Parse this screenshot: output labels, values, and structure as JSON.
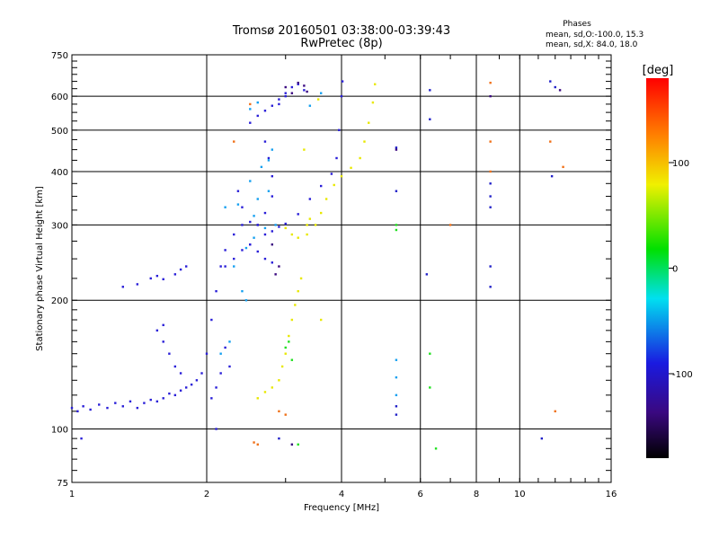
{
  "chart_data": {
    "type": "scatter",
    "title": "Tromsø 20160501 03:38:00-03:39:43",
    "subtitle": "RwPretec (8p)",
    "phases": {
      "heading": "Phases",
      "line1": "mean, sd,O:-100.0, 15.3",
      "line2": "mean, sd,X:  84.0, 18.0"
    },
    "xlabel": "Frequency [MHz]",
    "ylabel": "Stationary phase Virtual Height [km]",
    "x_scale": "log",
    "y_scale": "log",
    "xlim": [
      1,
      16
    ],
    "ylim": [
      75,
      750
    ],
    "x_ticks": [
      {
        "v": 1,
        "label": "1"
      },
      {
        "v": 2,
        "label": "2"
      },
      {
        "v": 4,
        "label": "4"
      },
      {
        "v": 6,
        "label": "6"
      },
      {
        "v": 8,
        "label": "8"
      },
      {
        "v": 10,
        "label": "10"
      },
      {
        "v": 16,
        "label": "16"
      }
    ],
    "y_ticks": [
      {
        "v": 75,
        "label": "75"
      },
      {
        "v": 100,
        "label": "100"
      },
      {
        "v": 200,
        "label": "200"
      },
      {
        "v": 300,
        "label": "300"
      },
      {
        "v": 400,
        "label": "400"
      },
      {
        "v": 500,
        "label": "500"
      },
      {
        "v": 600,
        "label": "600"
      },
      {
        "v": 750,
        "label": "750"
      }
    ],
    "grid": true,
    "colorbar": {
      "label": "[deg]",
      "range": [
        -180,
        180
      ],
      "ticks": [
        {
          "v": 100,
          "label": "100"
        },
        {
          "v": 0,
          "label": "0"
        },
        {
          "v": -100,
          "label": "-100"
        }
      ]
    },
    "series": [
      {
        "role": "o-mode",
        "phase": -100,
        "color": "#2a1fd8",
        "points": [
          [
            1.0,
            112
          ],
          [
            1.03,
            110
          ],
          [
            1.06,
            113
          ],
          [
            1.1,
            111
          ],
          [
            1.15,
            114
          ],
          [
            1.2,
            112
          ],
          [
            1.25,
            115
          ],
          [
            1.3,
            113
          ],
          [
            1.35,
            116
          ],
          [
            1.4,
            112
          ],
          [
            1.45,
            115
          ],
          [
            1.5,
            117
          ],
          [
            1.55,
            116
          ],
          [
            1.6,
            118
          ],
          [
            1.65,
            121
          ],
          [
            1.7,
            120
          ],
          [
            1.75,
            123
          ],
          [
            1.8,
            125
          ],
          [
            1.85,
            127
          ],
          [
            1.9,
            130
          ],
          [
            1.95,
            135
          ],
          [
            2.0,
            150
          ],
          [
            2.05,
            180
          ],
          [
            2.1,
            210
          ],
          [
            2.15,
            240
          ],
          [
            2.2,
            262
          ],
          [
            2.3,
            285
          ],
          [
            2.4,
            300
          ],
          [
            2.5,
            305
          ],
          [
            2.6,
            300
          ],
          [
            2.7,
            285
          ],
          [
            2.8,
            290
          ],
          [
            2.9,
            297
          ],
          [
            3.0,
            302
          ],
          [
            3.2,
            318
          ],
          [
            3.4,
            345
          ],
          [
            3.6,
            370
          ],
          [
            3.8,
            395
          ],
          [
            3.9,
            430
          ],
          [
            3.95,
            500
          ],
          [
            4.0,
            600
          ],
          [
            4.02,
            650
          ],
          [
            1.3,
            215
          ],
          [
            1.4,
            218
          ],
          [
            1.5,
            225
          ],
          [
            1.55,
            228
          ],
          [
            1.6,
            224
          ],
          [
            1.7,
            230
          ],
          [
            1.75,
            236
          ],
          [
            1.8,
            240
          ],
          [
            1.55,
            170
          ],
          [
            1.6,
            160
          ],
          [
            1.65,
            150
          ],
          [
            1.7,
            140
          ],
          [
            1.75,
            135
          ],
          [
            1.6,
            175
          ],
          [
            2.2,
            240
          ],
          [
            2.3,
            250
          ],
          [
            2.4,
            262
          ],
          [
            2.5,
            270
          ],
          [
            2.6,
            260
          ],
          [
            2.7,
            250
          ],
          [
            2.8,
            245
          ],
          [
            2.5,
            520
          ],
          [
            2.6,
            540
          ],
          [
            2.7,
            555
          ],
          [
            2.8,
            570
          ],
          [
            2.9,
            590
          ],
          [
            3.0,
            610
          ],
          [
            3.1,
            630
          ],
          [
            3.2,
            640
          ],
          [
            3.3,
            620
          ],
          [
            3.0,
            600
          ],
          [
            2.9,
            575
          ],
          [
            2.7,
            470
          ],
          [
            2.75,
            430
          ],
          [
            2.8,
            390
          ],
          [
            2.8,
            350
          ],
          [
            2.7,
            320
          ],
          [
            2.6,
            300
          ],
          [
            2.5,
            270
          ],
          [
            2.4,
            330
          ],
          [
            2.35,
            360
          ],
          [
            2.2,
            155
          ],
          [
            2.25,
            140
          ],
          [
            2.1,
            125
          ],
          [
            2.05,
            118
          ],
          [
            2.15,
            135
          ],
          [
            2.1,
            100
          ],
          [
            1.05,
            95
          ]
        ]
      },
      {
        "role": "o-mode-cyan",
        "phase": -60,
        "color": "#15a0f0",
        "points": [
          [
            2.45,
            265
          ],
          [
            2.55,
            280
          ],
          [
            2.7,
            295
          ],
          [
            2.85,
            300
          ],
          [
            2.35,
            335
          ],
          [
            2.55,
            315
          ],
          [
            2.6,
            345
          ],
          [
            2.2,
            330
          ],
          [
            2.75,
            360
          ],
          [
            2.5,
            380
          ],
          [
            2.65,
            410
          ],
          [
            2.75,
            425
          ],
          [
            2.8,
            450
          ],
          [
            2.3,
            240
          ],
          [
            2.4,
            210
          ],
          [
            2.45,
            200
          ],
          [
            2.5,
            560
          ],
          [
            2.6,
            580
          ],
          [
            3.4,
            570
          ],
          [
            3.6,
            610
          ],
          [
            2.15,
            150
          ],
          [
            2.25,
            160
          ],
          [
            5.3,
            145
          ],
          [
            5.3,
            132
          ],
          [
            5.3,
            120
          ]
        ]
      },
      {
        "role": "x-mode",
        "phase": 84,
        "color": "#e8e800",
        "points": [
          [
            3.0,
            295
          ],
          [
            3.1,
            285
          ],
          [
            3.2,
            280
          ],
          [
            3.35,
            285
          ],
          [
            3.5,
            300
          ],
          [
            3.6,
            320
          ],
          [
            3.7,
            345
          ],
          [
            3.85,
            372
          ],
          [
            4.0,
            390
          ],
          [
            4.2,
            408
          ],
          [
            4.4,
            430
          ],
          [
            4.5,
            470
          ],
          [
            4.6,
            520
          ],
          [
            4.7,
            580
          ],
          [
            4.75,
            640
          ],
          [
            2.8,
            125
          ],
          [
            2.9,
            130
          ],
          [
            2.95,
            140
          ],
          [
            3.0,
            150
          ],
          [
            3.05,
            165
          ],
          [
            3.1,
            180
          ],
          [
            3.15,
            195
          ],
          [
            3.2,
            210
          ],
          [
            3.25,
            225
          ],
          [
            3.35,
            300
          ],
          [
            3.4,
            310
          ],
          [
            3.3,
            450
          ],
          [
            3.55,
            590
          ],
          [
            3.6,
            180
          ],
          [
            2.7,
            122
          ],
          [
            2.6,
            118
          ]
        ]
      },
      {
        "role": "x-mode-green",
        "phase": 20,
        "color": "#20e020",
        "points": [
          [
            3.0,
            155
          ],
          [
            3.05,
            160
          ],
          [
            3.1,
            145
          ],
          [
            5.3,
            300
          ],
          [
            5.3,
            292
          ],
          [
            6.3,
            150
          ],
          [
            6.3,
            125
          ],
          [
            3.2,
            92
          ],
          [
            6.5,
            90
          ]
        ]
      },
      {
        "role": "orange-sparse",
        "phase": 140,
        "color": "#f07018",
        "points": [
          [
            2.55,
            93
          ],
          [
            2.6,
            92
          ],
          [
            2.9,
            110
          ],
          [
            3.0,
            108
          ],
          [
            7.0,
            300
          ],
          [
            8.6,
            645
          ],
          [
            8.6,
            470
          ],
          [
            8.6,
            400
          ],
          [
            12.5,
            410
          ],
          [
            11.7,
            470
          ],
          [
            2.3,
            470
          ],
          [
            2.5,
            575
          ],
          [
            12.0,
            110
          ]
        ]
      },
      {
        "role": "sparse-high",
        "phase": -110,
        "color": "#2020c8",
        "points": [
          [
            5.3,
            455
          ],
          [
            5.3,
            360
          ],
          [
            6.3,
            620
          ],
          [
            6.3,
            530
          ],
          [
            6.2,
            230
          ],
          [
            8.6,
            375
          ],
          [
            8.6,
            350
          ],
          [
            8.6,
            330
          ],
          [
            8.6,
            240
          ],
          [
            8.6,
            215
          ],
          [
            11.7,
            650
          ],
          [
            12.0,
            630
          ],
          [
            11.8,
            390
          ],
          [
            2.9,
            95
          ],
          [
            11.2,
            95
          ],
          [
            5.3,
            108
          ],
          [
            5.3,
            113
          ]
        ]
      },
      {
        "role": "dark-violet",
        "phase": -150,
        "color": "#3a0880",
        "points": [
          [
            3.0,
            630
          ],
          [
            3.1,
            610
          ],
          [
            3.2,
            645
          ],
          [
            3.3,
            635
          ],
          [
            3.35,
            615
          ],
          [
            2.8,
            270
          ],
          [
            2.9,
            240
          ],
          [
            2.85,
            230
          ],
          [
            3.1,
            92
          ],
          [
            8.6,
            600
          ],
          [
            12.3,
            620
          ],
          [
            5.3,
            450
          ]
        ]
      }
    ]
  }
}
